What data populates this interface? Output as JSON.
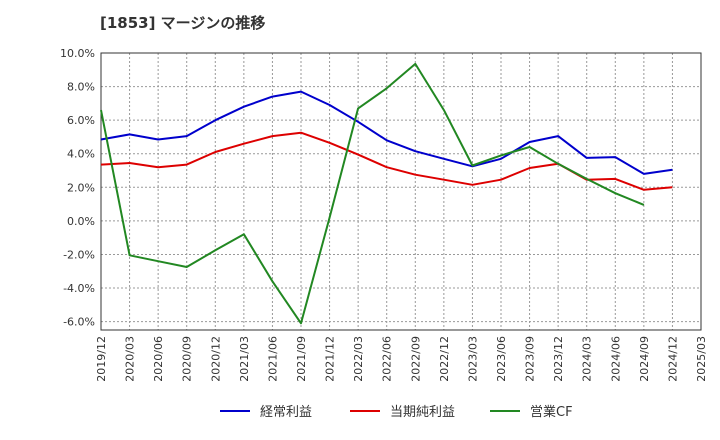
{
  "chart_data": {
    "type": "line",
    "title": "[1853]  マージンの推移",
    "x": [
      "2019/12",
      "2020/03",
      "2020/06",
      "2020/09",
      "2020/12",
      "2021/03",
      "2021/06",
      "2021/09",
      "2021/12",
      "2022/03",
      "2022/06",
      "2022/09",
      "2022/12",
      "2023/03",
      "2023/06",
      "2023/09",
      "2023/12",
      "2024/03",
      "2024/06",
      "2024/09",
      "2024/12",
      "2025/03"
    ],
    "ylim": [
      -6.5,
      10.0
    ],
    "yticks": [
      10.0,
      8.0,
      6.0,
      4.0,
      2.0,
      0.0,
      -2.0,
      -4.0,
      -6.0
    ],
    "ytick_labels": [
      "10.0%",
      "8.0%",
      "6.0%",
      "4.0%",
      "2.0%",
      "0.0%",
      "-2.0%",
      "-4.0%",
      "-6.0%"
    ],
    "grid": true,
    "legend_position": "bottom",
    "series": [
      {
        "name": "経常利益",
        "color": "#0000cc",
        "values": [
          4.85,
          5.15,
          4.85,
          5.05,
          6.0,
          6.8,
          7.4,
          7.7,
          6.9,
          5.9,
          4.8,
          4.15,
          3.7,
          3.25,
          3.7,
          4.7,
          5.05,
          3.75,
          3.8,
          2.8,
          3.05,
          null
        ]
      },
      {
        "name": "当期純利益",
        "color": "#dd0000",
        "values": [
          3.35,
          3.45,
          3.2,
          3.35,
          4.1,
          4.6,
          5.05,
          5.25,
          4.65,
          3.95,
          3.2,
          2.75,
          2.45,
          2.15,
          2.45,
          3.15,
          3.4,
          2.45,
          2.5,
          1.85,
          2.0,
          null
        ]
      },
      {
        "name": "営業CF",
        "color": "#228822",
        "values": [
          6.6,
          -2.05,
          -2.4,
          -2.75,
          -1.75,
          -0.8,
          -3.6,
          -6.1,
          0.2,
          6.7,
          7.9,
          9.35,
          6.6,
          3.3,
          3.9,
          4.4,
          3.4,
          2.5,
          1.65,
          0.95,
          null,
          null
        ]
      }
    ]
  }
}
